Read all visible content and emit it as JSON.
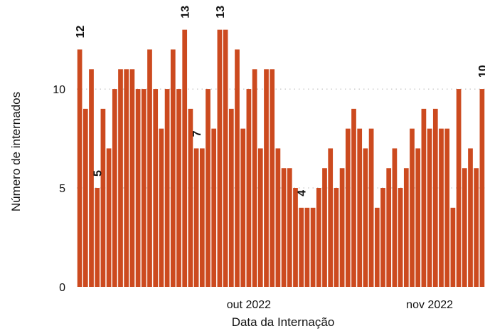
{
  "chart_data": {
    "type": "bar",
    "xlabel": "Data da Internação",
    "ylabel": "Número de internados",
    "ylim": [
      0,
      14.5
    ],
    "yticks": [
      0,
      5,
      10
    ],
    "grid": "dotted horizontal at y ticks",
    "bar_color": "#cc4a1f",
    "x_tick_labels": [
      {
        "label": "out 2022",
        "day_index": 30
      },
      {
        "label": "nov 2022",
        "day_index": 61
      }
    ],
    "values": [
      12,
      9,
      11,
      5,
      9,
      7,
      10,
      11,
      11,
      11,
      10,
      10,
      12,
      10,
      8,
      10,
      12,
      10,
      13,
      9,
      7,
      7,
      10,
      8,
      13,
      13,
      9,
      12,
      8,
      10,
      11,
      7,
      11,
      11,
      7,
      6,
      6,
      5,
      4,
      4,
      4,
      5,
      6,
      7,
      5,
      6,
      8,
      9,
      8,
      7,
      8,
      4,
      5,
      6,
      7,
      5,
      6,
      8,
      7,
      9,
      8,
      9,
      8,
      8,
      4,
      10,
      6,
      7,
      6,
      10
    ],
    "bar_labels": [
      {
        "day_index": 1,
        "text": "12"
      },
      {
        "day_index": 4,
        "text": "5"
      },
      {
        "day_index": 19,
        "text": "13"
      },
      {
        "day_index": 21,
        "text": "7"
      },
      {
        "day_index": 25,
        "text": "13"
      },
      {
        "day_index": 39,
        "text": "4"
      },
      {
        "day_index": 70,
        "text": "10"
      }
    ]
  }
}
